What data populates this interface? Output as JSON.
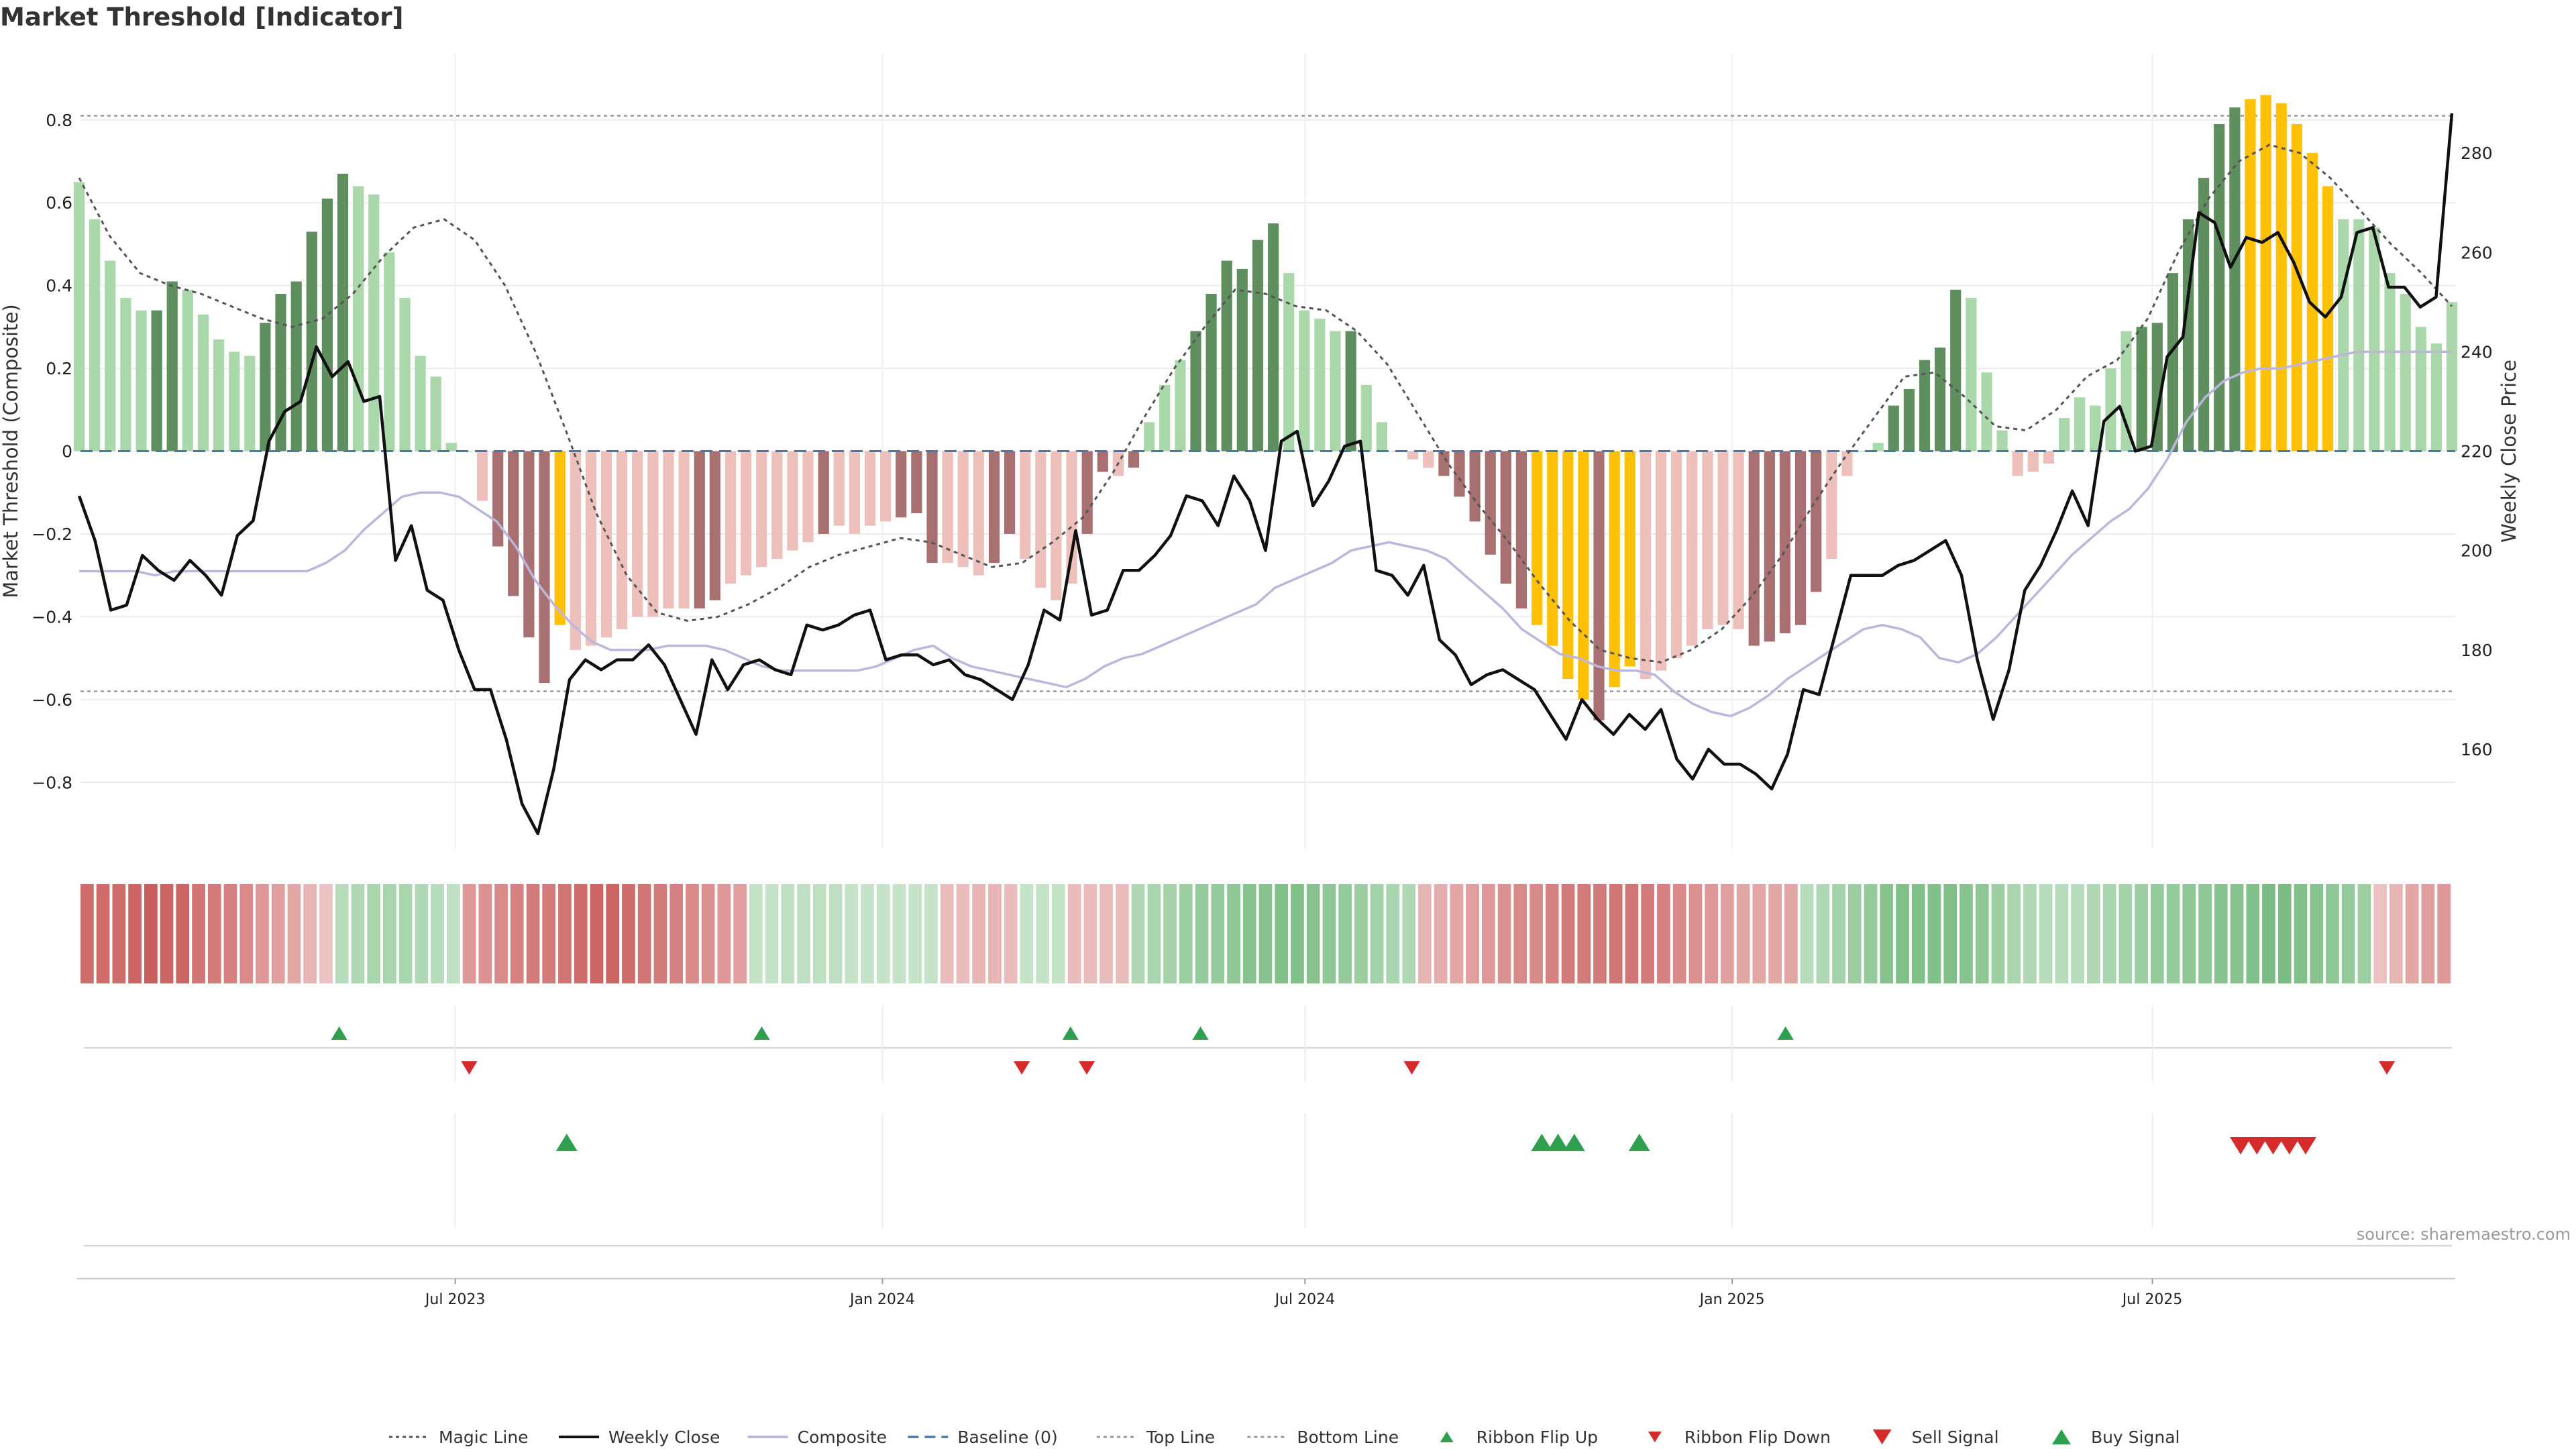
{
  "title": "Market Threshold [Indicator]",
  "source": "source: sharemaestro.com",
  "colors": {
    "pos_strong": "#5f8f5f",
    "pos_light": "#aad8aa",
    "neg_strong": "#a87070",
    "neg_light": "#eec0bc",
    "extreme": "#ffc107",
    "weekly_close": "#111111",
    "composite": "#bdb6dc",
    "magic": "#555555",
    "baseline": "#4a78a8",
    "threshold": "#999999",
    "up_marker": "#2e9e4f",
    "down_marker": "#d62b2b"
  },
  "chart_data": {
    "type": "bar",
    "title": "Market Threshold [Indicator]",
    "ylabel_left": "Market Threshold (Composite)",
    "ylabel_right": "Weekly Close Price",
    "ylim_left": [
      -0.96,
      0.96
    ],
    "ylim_right": [
      140,
      300
    ],
    "yticks_left": [
      "−0.8",
      "−0.6",
      "−0.4",
      "−0.2",
      "0",
      "0.2",
      "0.4",
      "0.6",
      "0.8"
    ],
    "yticks_left_values": [
      -0.8,
      -0.6,
      -0.4,
      -0.2,
      0,
      0.2,
      0.4,
      0.6,
      0.8
    ],
    "yticks_right": [
      "160",
      "180",
      "200",
      "220",
      "240",
      "260",
      "280"
    ],
    "yticks_right_values": [
      160,
      180,
      200,
      220,
      240,
      260,
      280
    ],
    "x_start": "2023-01-20",
    "x_end": "2025-11-07",
    "xtick_labels": [
      "Jul 2023",
      "Jan 2024",
      "Jul 2024",
      "Jan 2025",
      "Jul 2025"
    ],
    "xtick_dates": [
      "2023-07-01",
      "2024-01-01",
      "2024-07-01",
      "2025-01-01",
      "2025-07-01"
    ],
    "top_line": 0.81,
    "bottom_line": -0.58,
    "baseline": 0,
    "grid": true,
    "legend_position": "bottom",
    "bar_values": [
      0.65,
      0.56,
      0.46,
      0.37,
      0.34,
      0.34,
      0.41,
      0.39,
      0.33,
      0.27,
      0.24,
      0.23,
      0.31,
      0.38,
      0.41,
      0.53,
      0.61,
      0.67,
      0.64,
      0.62,
      0.48,
      0.37,
      0.23,
      0.18,
      0.02,
      0.0,
      -0.12,
      -0.23,
      -0.35,
      -0.45,
      -0.56,
      -0.42,
      -0.48,
      -0.47,
      -0.45,
      -0.43,
      -0.4,
      -0.4,
      -0.38,
      -0.38,
      -0.38,
      -0.36,
      -0.32,
      -0.3,
      -0.28,
      -0.26,
      -0.24,
      -0.22,
      -0.2,
      -0.18,
      -0.2,
      -0.18,
      -0.17,
      -0.16,
      -0.15,
      -0.27,
      -0.27,
      -0.28,
      -0.3,
      -0.27,
      -0.2,
      -0.26,
      -0.33,
      -0.36,
      -0.32,
      -0.2,
      -0.05,
      -0.06,
      -0.04,
      0.07,
      0.16,
      0.22,
      0.29,
      0.38,
      0.46,
      0.44,
      0.51,
      0.55,
      0.43,
      0.34,
      0.32,
      0.29,
      0.29,
      0.16,
      0.07,
      0.0,
      -0.02,
      -0.04,
      -0.06,
      -0.11,
      -0.17,
      -0.25,
      -0.32,
      -0.38,
      -0.42,
      -0.47,
      -0.55,
      -0.6,
      -0.65,
      -0.57,
      -0.52,
      -0.55,
      -0.53,
      -0.5,
      -0.47,
      -0.43,
      -0.42,
      -0.43,
      -0.47,
      -0.46,
      -0.44,
      -0.42,
      -0.34,
      -0.26,
      -0.06,
      0.0,
      0.02,
      0.11,
      0.15,
      0.22,
      0.25,
      0.39,
      0.37,
      0.19,
      0.05,
      -0.06,
      -0.05,
      -0.03,
      0.08,
      0.13,
      0.11,
      0.2,
      0.29,
      0.3,
      0.31,
      0.43,
      0.56,
      0.66,
      0.79,
      0.83,
      0.85,
      0.86,
      0.84,
      0.79,
      0.72,
      0.64,
      0.56,
      0.56,
      0.54,
      0.43,
      0.38,
      0.3,
      0.26,
      0.36
    ],
    "bar_tones": "LLLLLSSLLLLLSSSSSSLLLLLLLLLSSSSELLLLLLLLSSLLLLLLSLLLLSSSLLLSSLLLLSSLSLLLSSSSSSLLLLSLLLLLSSSSSSEEEESEELLLLLLLSSSSSLLLLSSSSSLLLLLLLLLLLSSSSSSSEEEEEELLLLLLLLLS",
    "series": [
      {
        "name": "Weekly Close",
        "axis": "right",
        "values": [
          211,
          202,
          188,
          189,
          199,
          196,
          194,
          198,
          195,
          191,
          203,
          206,
          222,
          228,
          230,
          241,
          235,
          238,
          230,
          231,
          198,
          205,
          192,
          190,
          180,
          172,
          172,
          162,
          149,
          143,
          156,
          174,
          178,
          176,
          178,
          178,
          181,
          177,
          170,
          163,
          178,
          172,
          177,
          178,
          176,
          175,
          185,
          184,
          185,
          187,
          188,
          178,
          179,
          179,
          177,
          178,
          175,
          174,
          172,
          170,
          177,
          188,
          186,
          204,
          187,
          188,
          196,
          196,
          199,
          203,
          211,
          210,
          205,
          215,
          210,
          200,
          222,
          224,
          209,
          214,
          221,
          222,
          196,
          195,
          191,
          197,
          182,
          179,
          173,
          175,
          176,
          174,
          172,
          167,
          162,
          170,
          166,
          163,
          167,
          164,
          168,
          158,
          154,
          160,
          157,
          157,
          155,
          152,
          159,
          172,
          171,
          183,
          195,
          195,
          195,
          197,
          198,
          200,
          202,
          195,
          178,
          166,
          176,
          192,
          197,
          204,
          212,
          205,
          226,
          229,
          220,
          221,
          239,
          243,
          268,
          266,
          257,
          263,
          262,
          264,
          258,
          250,
          247,
          251,
          264,
          265,
          253,
          253,
          249,
          251,
          288
        ]
      },
      {
        "name": "Composite",
        "axis": "left",
        "values": [
          -0.29,
          -0.29,
          -0.29,
          -0.29,
          -0.3,
          -0.29,
          -0.29,
          -0.29,
          -0.29,
          -0.29,
          -0.29,
          -0.29,
          -0.29,
          -0.27,
          -0.24,
          -0.19,
          -0.15,
          -0.11,
          -0.1,
          -0.1,
          -0.11,
          -0.14,
          -0.17,
          -0.23,
          -0.31,
          -0.37,
          -0.42,
          -0.46,
          -0.48,
          -0.48,
          -0.48,
          -0.47,
          -0.47,
          -0.47,
          -0.48,
          -0.5,
          -0.52,
          -0.53,
          -0.53,
          -0.53,
          -0.53,
          -0.53,
          -0.52,
          -0.5,
          -0.48,
          -0.47,
          -0.5,
          -0.52,
          -0.53,
          -0.54,
          -0.55,
          -0.56,
          -0.57,
          -0.55,
          -0.52,
          -0.5,
          -0.49,
          -0.47,
          -0.45,
          -0.43,
          -0.41,
          -0.39,
          -0.37,
          -0.33,
          -0.31,
          -0.29,
          -0.27,
          -0.24,
          -0.23,
          -0.22,
          -0.23,
          -0.24,
          -0.26,
          -0.3,
          -0.34,
          -0.38,
          -0.43,
          -0.46,
          -0.49,
          -0.5,
          -0.52,
          -0.53,
          -0.53,
          -0.54,
          -0.58,
          -0.61,
          -0.63,
          -0.64,
          -0.62,
          -0.59,
          -0.55,
          -0.52,
          -0.49,
          -0.46,
          -0.43,
          -0.42,
          -0.43,
          -0.45,
          -0.5,
          -0.51,
          -0.49,
          -0.45,
          -0.4,
          -0.35,
          -0.3,
          -0.25,
          -0.21,
          -0.17,
          -0.14,
          -0.09,
          -0.02,
          0.07,
          0.13,
          0.17,
          0.19,
          0.2,
          0.2,
          0.21,
          0.22,
          0.23,
          0.24,
          0.24,
          0.24,
          0.24,
          0.24,
          0.24
        ]
      },
      {
        "name": "Magic Line",
        "axis": "left",
        "values": [
          0.66,
          0.52,
          0.43,
          0.4,
          0.38,
          0.35,
          0.32,
          0.3,
          0.32,
          0.38,
          0.47,
          0.54,
          0.56,
          0.51,
          0.4,
          0.24,
          0.05,
          -0.15,
          -0.3,
          -0.39,
          -0.41,
          -0.4,
          -0.37,
          -0.33,
          -0.28,
          -0.25,
          -0.23,
          -0.21,
          -0.22,
          -0.25,
          -0.28,
          -0.27,
          -0.22,
          -0.16,
          -0.05,
          0.08,
          0.2,
          0.3,
          0.39,
          0.38,
          0.35,
          0.34,
          0.29,
          0.21,
          0.09,
          -0.03,
          -0.13,
          -0.22,
          -0.32,
          -0.41,
          -0.48,
          -0.5,
          -0.51,
          -0.48,
          -0.43,
          -0.35,
          -0.25,
          -0.13,
          -0.02,
          0.08,
          0.18,
          0.19,
          0.13,
          0.06,
          0.05,
          0.1,
          0.18,
          0.22,
          0.32,
          0.48,
          0.61,
          0.7,
          0.74,
          0.72,
          0.66,
          0.58,
          0.5,
          0.43,
          0.35
        ]
      }
    ],
    "ribbon": {
      "tones": [
        -0.8,
        -0.8,
        -0.8,
        -0.85,
        -0.9,
        -0.85,
        -0.85,
        -0.75,
        -0.7,
        -0.65,
        -0.6,
        -0.5,
        -0.45,
        -0.4,
        -0.3,
        -0.2,
        0.35,
        0.4,
        0.45,
        0.45,
        0.45,
        0.4,
        0.35,
        0.3,
        -0.5,
        -0.55,
        -0.6,
        -0.65,
        -0.7,
        -0.7,
        -0.75,
        -0.8,
        -0.85,
        -0.85,
        -0.8,
        -0.75,
        -0.7,
        -0.65,
        -0.6,
        -0.55,
        -0.5,
        -0.45,
        0.25,
        0.25,
        0.3,
        0.3,
        0.3,
        0.3,
        0.25,
        0.25,
        0.25,
        0.25,
        0.25,
        0.25,
        -0.25,
        -0.25,
        -0.3,
        -0.3,
        -0.25,
        0.25,
        0.25,
        0.25,
        -0.25,
        -0.25,
        -0.25,
        -0.25,
        0.4,
        0.45,
        0.5,
        0.55,
        0.6,
        0.6,
        0.65,
        0.7,
        0.7,
        0.75,
        0.75,
        0.7,
        0.65,
        0.6,
        0.55,
        0.5,
        0.45,
        0.4,
        -0.3,
        -0.35,
        -0.4,
        -0.45,
        -0.5,
        -0.55,
        -0.6,
        -0.6,
        -0.65,
        -0.7,
        -0.7,
        -0.7,
        -0.75,
        -0.75,
        -0.7,
        -0.65,
        -0.6,
        -0.55,
        -0.5,
        -0.45,
        -0.4,
        -0.4,
        -0.4,
        -0.4,
        0.35,
        0.4,
        0.5,
        0.55,
        0.6,
        0.7,
        0.75,
        0.75,
        0.75,
        0.75,
        0.7,
        0.65,
        0.55,
        0.45,
        0.4,
        0.35,
        0.35,
        0.35,
        0.4,
        0.45,
        0.5,
        0.55,
        0.6,
        0.6,
        0.65,
        0.65,
        0.7,
        0.7,
        0.75,
        0.8,
        0.8,
        0.75,
        0.7,
        0.65,
        0.6,
        0.55,
        -0.2,
        -0.3,
        -0.4,
        -0.45,
        -0.5
      ]
    },
    "ribbon_flip_up": [
      "2023-05-12",
      "2023-11-10",
      "2024-03-22",
      "2024-05-17",
      "2025-01-24"
    ],
    "ribbon_flip_down": [
      "2023-07-07",
      "2024-03-01",
      "2024-03-29",
      "2024-08-16",
      "2025-10-10"
    ],
    "buy_signal": [
      "2023-08-18",
      "2024-10-11",
      "2024-10-18",
      "2024-10-25",
      "2024-11-22"
    ],
    "sell_signal": [
      "2025-08-08",
      "2025-08-15",
      "2025-08-22",
      "2025-08-29",
      "2025-09-05"
    ]
  },
  "legend": [
    {
      "label": "Magic Line",
      "kind": "dotted",
      "color": "#555555"
    },
    {
      "label": "Weekly Close",
      "kind": "line",
      "color": "#111111"
    },
    {
      "label": "Composite",
      "kind": "line",
      "color": "#bdb6dc"
    },
    {
      "label": "Baseline (0)",
      "kind": "dashed",
      "color": "#4a78a8"
    },
    {
      "label": "Top Line",
      "kind": "dotted",
      "color": "#999999"
    },
    {
      "label": "Bottom Line",
      "kind": "dotted",
      "color": "#999999"
    },
    {
      "label": "Ribbon Flip Up",
      "kind": "tri-up-sm",
      "color": "#2e9e4f"
    },
    {
      "label": "Ribbon Flip Down",
      "kind": "tri-down-sm",
      "color": "#d62b2b"
    },
    {
      "label": "Sell Signal",
      "kind": "tri-down",
      "color": "#d62b2b"
    },
    {
      "label": "Buy Signal",
      "kind": "tri-up",
      "color": "#2e9e4f"
    }
  ]
}
